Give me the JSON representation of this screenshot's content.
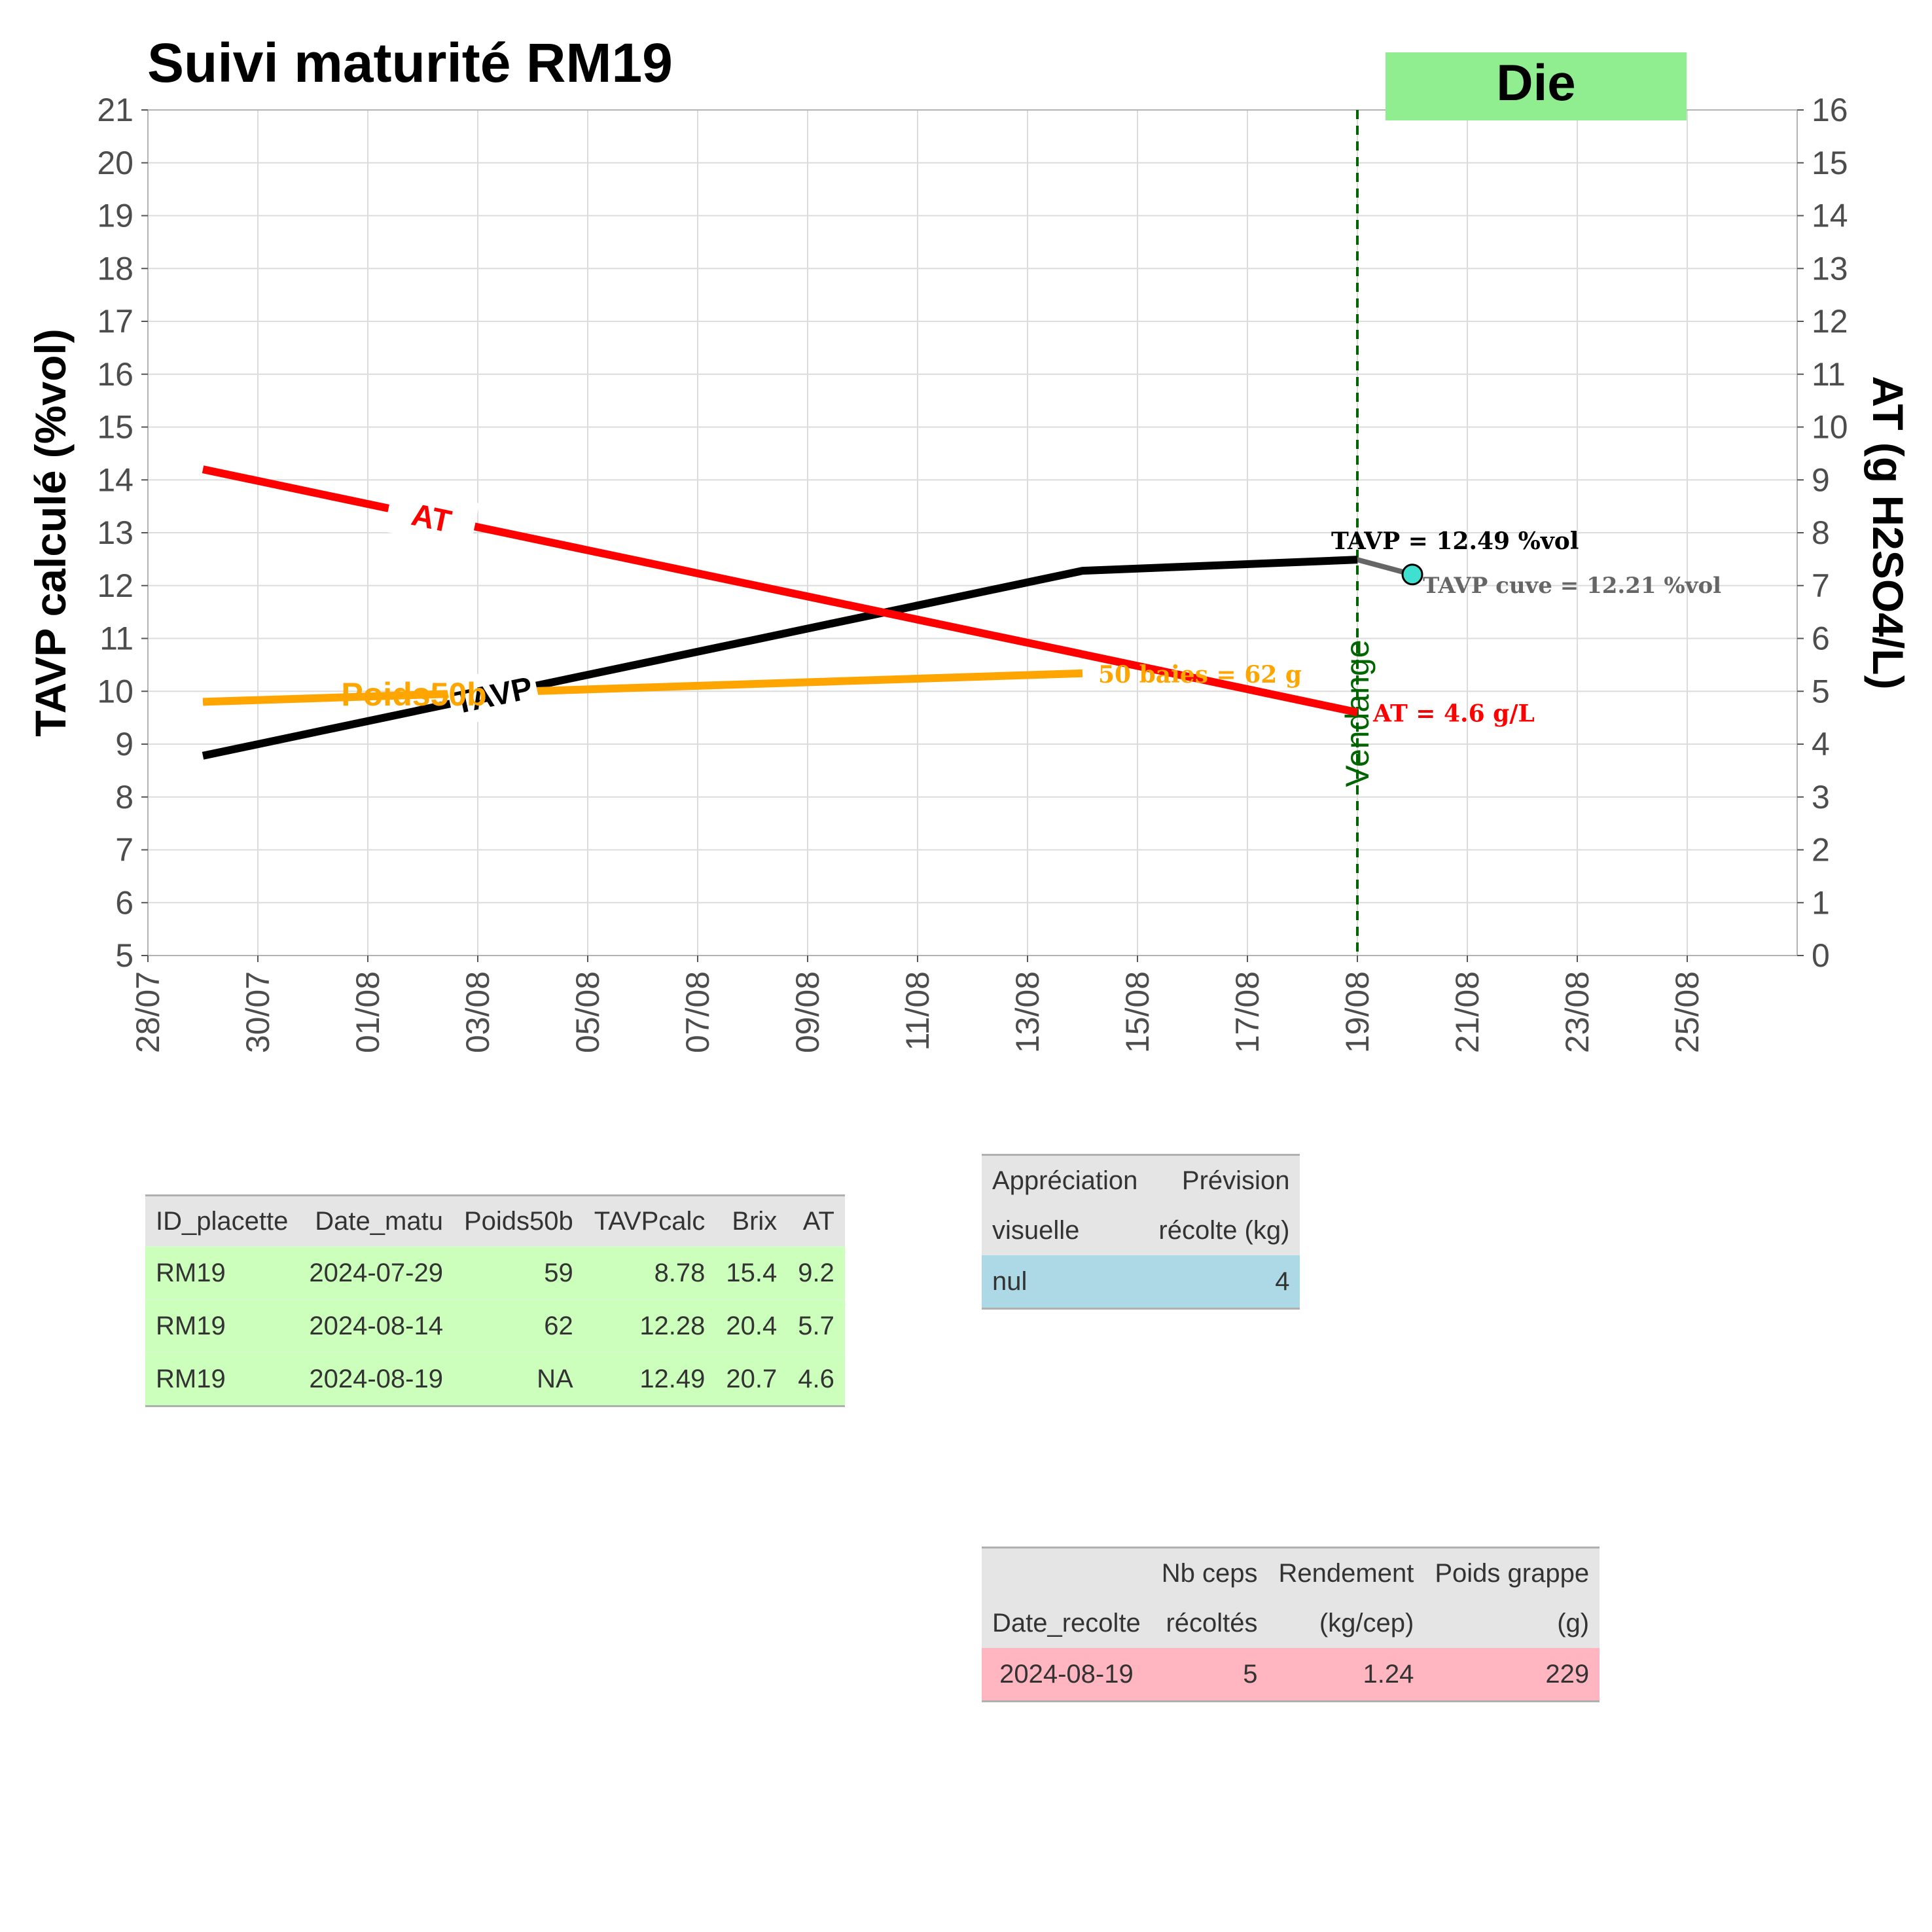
{
  "chart_data": {
    "type": "line",
    "title": "Suivi maturité  RM19",
    "badge": {
      "label": "Die",
      "color": "#90ee90"
    },
    "ylabel_left": "TAVP calculé (%vol)",
    "ylabel_right": "AT (g H2SO4/L)",
    "ylim_left": [
      5,
      21
    ],
    "ylim_right": [
      0,
      16
    ],
    "yticks_left": [
      "5",
      "6",
      "7",
      "8",
      "9",
      "10",
      "11",
      "12",
      "13",
      "14",
      "15",
      "16",
      "17",
      "18",
      "19",
      "20",
      "21"
    ],
    "yticks_right": [
      "0",
      "1",
      "2",
      "3",
      "4",
      "5",
      "6",
      "7",
      "8",
      "9",
      "10",
      "11",
      "12",
      "13",
      "14",
      "15",
      "16"
    ],
    "xlim": [
      "2024-07-28",
      "2024-08-27"
    ],
    "xticks": [
      {
        "date": "2024-07-28",
        "label": "28/07"
      },
      {
        "date": "2024-07-30",
        "label": "30/07"
      },
      {
        "date": "2024-08-01",
        "label": "01/08"
      },
      {
        "date": "2024-08-03",
        "label": "03/08"
      },
      {
        "date": "2024-08-05",
        "label": "05/08"
      },
      {
        "date": "2024-08-07",
        "label": "07/08"
      },
      {
        "date": "2024-08-09",
        "label": "09/08"
      },
      {
        "date": "2024-08-11",
        "label": "11/08"
      },
      {
        "date": "2024-08-13",
        "label": "13/08"
      },
      {
        "date": "2024-08-15",
        "label": "15/08"
      },
      {
        "date": "2024-08-17",
        "label": "17/08"
      },
      {
        "date": "2024-08-19",
        "label": "19/08"
      },
      {
        "date": "2024-08-21",
        "label": "21/08"
      },
      {
        "date": "2024-08-23",
        "label": "23/08"
      },
      {
        "date": "2024-08-25",
        "label": "25/08"
      }
    ],
    "grid": true,
    "series": [
      {
        "name": "TAVP",
        "axis": "left",
        "color": "#000000",
        "points": [
          {
            "x": "2024-07-29",
            "y": 8.78
          },
          {
            "x": "2024-08-14",
            "y": 12.28
          },
          {
            "x": "2024-08-19",
            "y": 12.49
          }
        ],
        "end_label": "TAVP = 12.49 %vol"
      },
      {
        "name": "AT",
        "axis": "right",
        "color": "#ff0000",
        "points": [
          {
            "x": "2024-07-29",
            "y": 9.2
          },
          {
            "x": "2024-08-14",
            "y": 5.7
          },
          {
            "x": "2024-08-19",
            "y": 4.6
          }
        ],
        "end_label": "AT = 4.6 g/L"
      },
      {
        "name": "Poids50b",
        "axis": "left",
        "color": "#ffa500",
        "points": [
          {
            "x": "2024-07-29",
            "y": 9.8
          },
          {
            "x": "2024-08-14",
            "y": 10.34
          }
        ],
        "end_label": "50 baies = 62 g"
      }
    ],
    "tavp_cuve": {
      "points": [
        {
          "x": "2024-08-19",
          "y": 12.49
        },
        {
          "x": "2024-08-20",
          "y": 12.21
        }
      ],
      "label": "TAVP cuve = 12.21 %vol",
      "line_color": "#666666",
      "point_color": "#40e0d0"
    },
    "vendange": {
      "date": "2024-08-19",
      "label": "Vendange",
      "color": "#006400"
    }
  },
  "tables": {
    "maturite": {
      "headers": [
        "ID_placette",
        "Date_matu",
        "Poids50b",
        "TAVPcalc",
        "Brix",
        "AT"
      ],
      "rows": [
        [
          "RM19",
          "2024-07-29",
          "59",
          "8.78",
          "15.4",
          "9.2"
        ],
        [
          "RM19",
          "2024-08-14",
          "62",
          "12.28",
          "20.4",
          "5.7"
        ],
        [
          "RM19",
          "2024-08-19",
          "NA",
          "12.49",
          "20.7",
          "4.6"
        ]
      ],
      "color": "#ccffbb"
    },
    "visuel": {
      "headers": [
        [
          "Appréciation",
          "visuelle"
        ],
        [
          "Prévision",
          "récolte (kg)"
        ]
      ],
      "rows": [
        [
          "nul",
          "4"
        ]
      ],
      "color": "#add8e6"
    },
    "recolte": {
      "headers": [
        [
          "",
          "Date_recolte"
        ],
        [
          "Nb ceps",
          "récoltés"
        ],
        [
          "Rendement",
          "(kg/cep)"
        ],
        [
          "Poids grappe",
          "(g)"
        ]
      ],
      "rows": [
        [
          "2024-08-19",
          "5",
          "1.24",
          "229"
        ]
      ],
      "color": "#ffb6c1"
    }
  }
}
